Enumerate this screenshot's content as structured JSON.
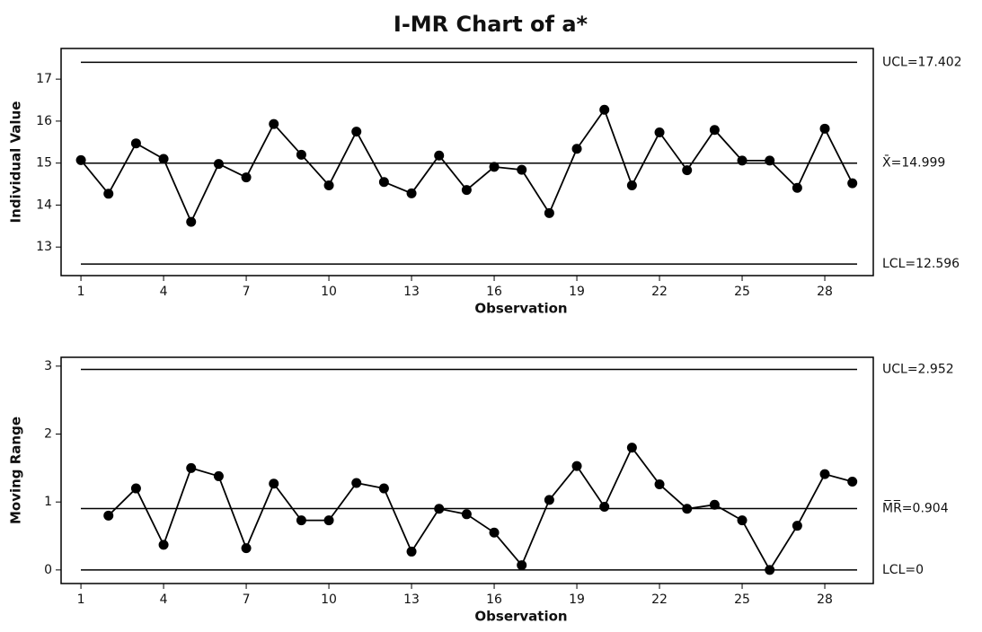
{
  "chart_data": [
    {
      "type": "line",
      "title": "I-MR Chart of a*",
      "xlabel": "Observation",
      "ylabel": "Individual Value",
      "x": [
        1,
        2,
        3,
        4,
        5,
        6,
        7,
        8,
        9,
        10,
        11,
        12,
        13,
        14,
        15,
        16,
        17,
        18,
        19,
        20,
        21,
        22,
        23,
        24,
        25,
        26,
        27,
        28,
        29
      ],
      "series": [
        {
          "color": "#000000",
          "values": [
            15.07,
            14.27,
            15.47,
            15.1,
            13.6,
            14.98,
            14.66,
            15.93,
            15.2,
            14.47,
            15.75,
            14.55,
            14.28,
            15.18,
            14.36,
            14.91,
            14.84,
            13.81,
            15.34,
            16.27,
            14.47,
            15.73,
            14.83,
            15.79,
            15.06,
            15.06,
            14.41,
            15.82,
            14.52
          ]
        }
      ],
      "xlim": [
        0.28,
        29.76
      ],
      "xticks": [
        1,
        4,
        7,
        10,
        13,
        16,
        19,
        22,
        25,
        28
      ],
      "ylim": [
        12.32,
        17.73
      ],
      "yticks": [
        13,
        14,
        15,
        16,
        17
      ],
      "control_lines": [
        {
          "value": 17.402,
          "label": "UCL=17.402"
        },
        {
          "value": 14.999,
          "label": "X̄=14.999"
        },
        {
          "value": 12.596,
          "label": "LCL=12.596"
        }
      ]
    },
    {
      "type": "line",
      "xlabel": "Observation",
      "ylabel": "Moving Range",
      "x": [
        1,
        2,
        3,
        4,
        5,
        6,
        7,
        8,
        9,
        10,
        11,
        12,
        13,
        14,
        15,
        16,
        17,
        18,
        19,
        20,
        21,
        22,
        23,
        24,
        25,
        26,
        27,
        28,
        29
      ],
      "series": [
        {
          "color": "#000000",
          "values": [
            null,
            0.8,
            1.2,
            0.37,
            1.5,
            1.38,
            0.32,
            1.27,
            0.73,
            0.73,
            1.28,
            1.2,
            0.27,
            0.9,
            0.82,
            0.55,
            0.07,
            1.03,
            1.53,
            0.93,
            1.8,
            1.26,
            0.9,
            0.96,
            0.73,
            0,
            0.65,
            1.41,
            1.3
          ]
        }
      ],
      "xlim": [
        0.28,
        29.76
      ],
      "xticks": [
        1,
        4,
        7,
        10,
        13,
        16,
        19,
        22,
        25,
        28
      ],
      "ylim": [
        -0.2,
        3.13
      ],
      "yticks": [
        0,
        1,
        2,
        3
      ],
      "control_lines": [
        {
          "value": 2.952,
          "label": "UCL=2.952"
        },
        {
          "value": 0.904,
          "label": "M̅R̅=0.904"
        },
        {
          "value": 0,
          "label": "LCL=0"
        }
      ]
    }
  ]
}
